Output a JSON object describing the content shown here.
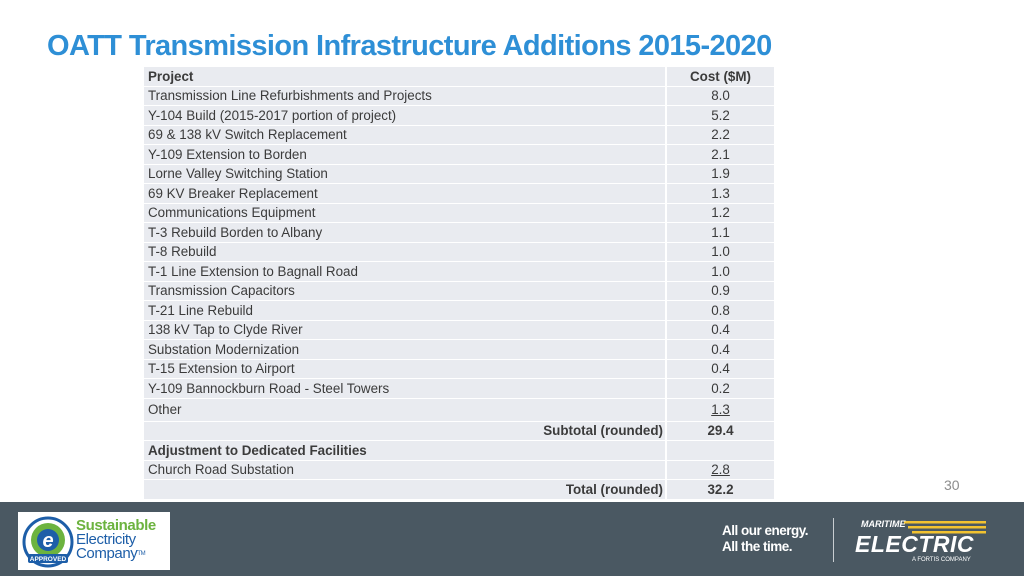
{
  "title": "OATT Transmission Infrastructure Additions 2015-2020",
  "table": {
    "header": {
      "project": "Project",
      "cost": "Cost ($M)"
    },
    "rows": [
      {
        "project": "Transmission Line Refurbishments and Projects",
        "cost": "8.0"
      },
      {
        "project": "Y-104 Build (2015-2017 portion of project)",
        "cost": "5.2"
      },
      {
        "project": "69 & 138 kV Switch Replacement",
        "cost": "2.2"
      },
      {
        "project": "Y-109 Extension to Borden",
        "cost": "2.1"
      },
      {
        "project": "Lorne Valley Switching Station",
        "cost": "1.9"
      },
      {
        "project": "69 KV Breaker Replacement",
        "cost": "1.3"
      },
      {
        "project": "Communications Equipment",
        "cost": "1.2"
      },
      {
        "project": "T-3 Rebuild Borden to Albany",
        "cost": "1.1"
      },
      {
        "project": "T-8 Rebuild",
        "cost": "1.0"
      },
      {
        "project": "T-1 Line Extension to Bagnall Road",
        "cost": "1.0"
      },
      {
        "project": "Transmission Capacitors",
        "cost": "0.9"
      },
      {
        "project": "T-21 Line Rebuild",
        "cost": "0.8"
      },
      {
        "project": "138 kV Tap to Clyde River",
        "cost": "0.4"
      },
      {
        "project": "Substation Modernization",
        "cost": "0.4"
      },
      {
        "project": "T-15 Extension to Airport",
        "cost": "0.4"
      },
      {
        "project": "Y-109 Bannockburn Road - Steel Towers",
        "cost": "0.2"
      },
      {
        "project": "Other",
        "cost": "1.3"
      }
    ],
    "subtotal": {
      "label": "Subtotal (rounded)",
      "value": "29.4"
    },
    "adjustment_header": "Adjustment to Dedicated Facilities",
    "adjustment_row": {
      "project": "Church Road Substation",
      "cost": "2.8"
    },
    "total": {
      "label": "Total (rounded)",
      "value": "32.2"
    }
  },
  "page_number": "30",
  "footer": {
    "sec_logo": {
      "line1": "Sustainable",
      "line2": "Electricity",
      "line3": "Company",
      "tm": "TM",
      "seal": "APPROVED"
    },
    "tagline": {
      "line1": "All our energy.",
      "line2": "All the time."
    },
    "brand": {
      "top": "MARITIME",
      "main": "ELECTRIC",
      "sub": "A FORTIS COMPANY"
    }
  },
  "colors": {
    "title": "#2e8fd6",
    "table_cell": "#e9ebf0",
    "footer_bg": "#4a5862",
    "sec_green": "#6cb33f",
    "sec_blue": "#1d5ea8",
    "brand_yellow": "#f2c230"
  }
}
